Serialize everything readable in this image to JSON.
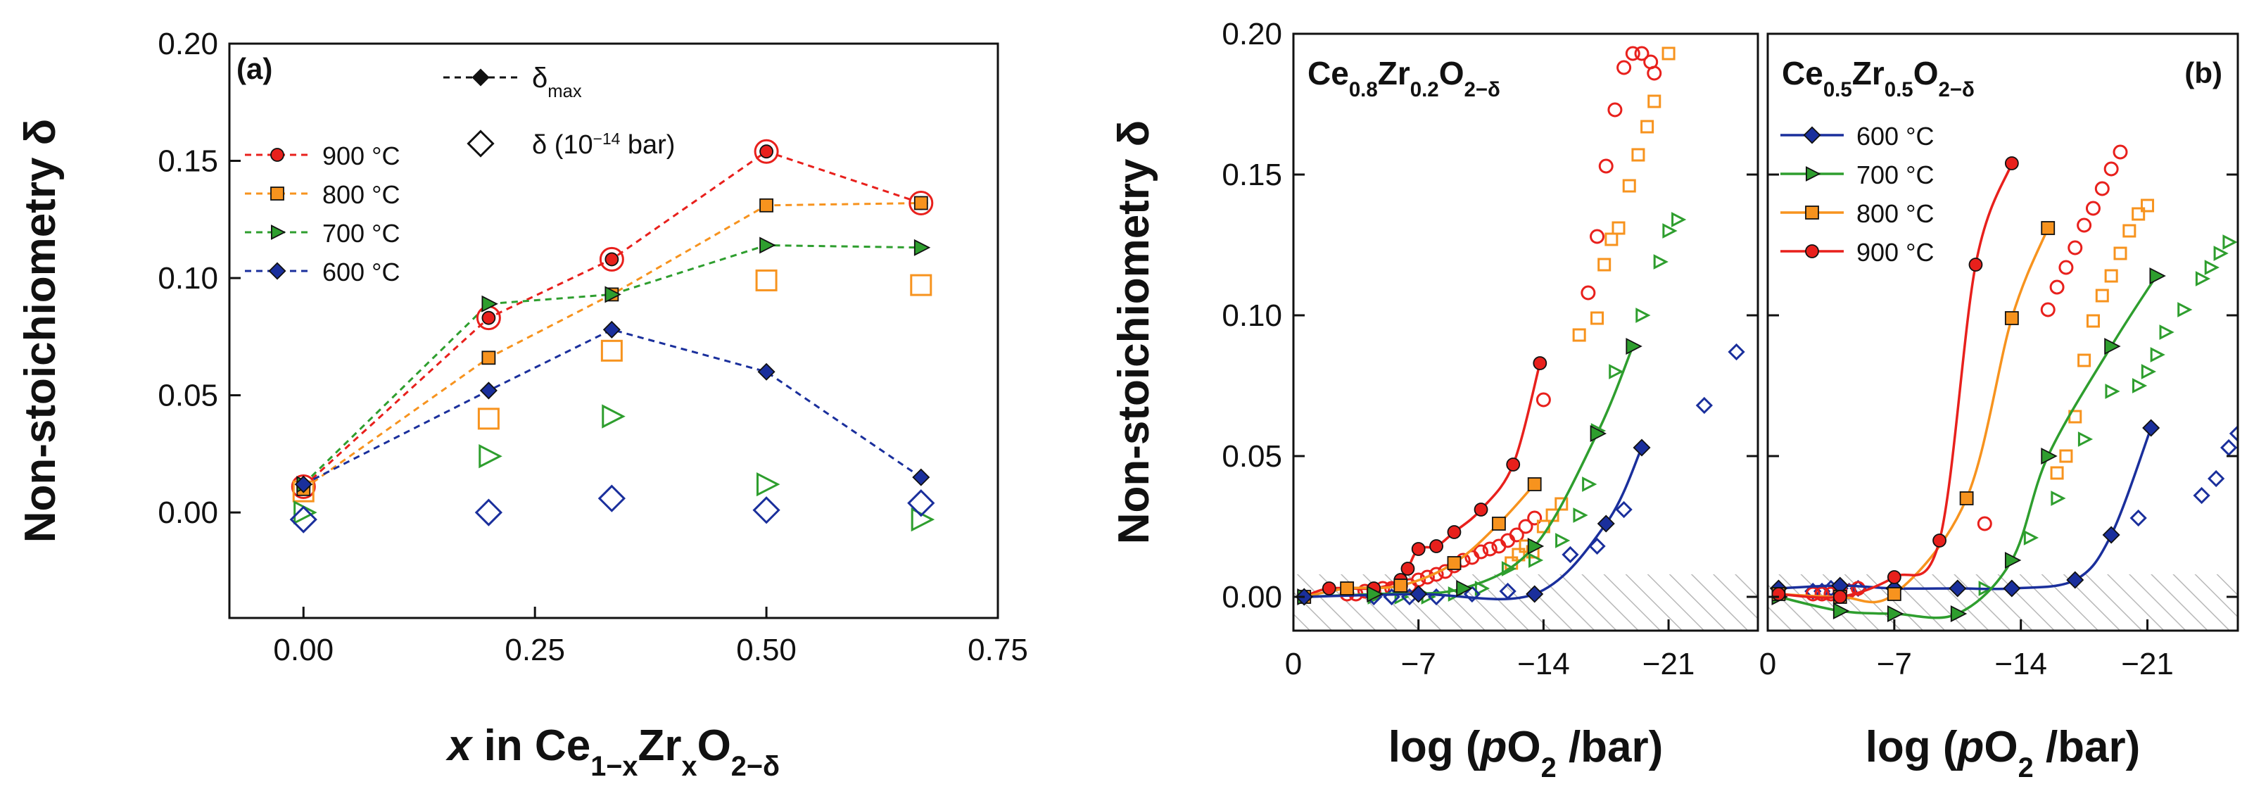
{
  "chart_data": [
    {
      "type": "line",
      "panel": "(a)",
      "xlabel": {
        "italic": "x",
        "mid": " in Ce",
        "sub1": "1−x",
        "mid2": "Zr",
        "sub2": "x",
        "mid3": "O",
        "sub3": "2−δ"
      },
      "ylabel": "Non-stoichiometry δ",
      "xlim": [
        -0.08,
        0.75
      ],
      "ylim": [
        -0.045,
        0.2
      ],
      "xticks": [
        "0.00",
        "0.25",
        "0.50",
        "0.75"
      ],
      "yticks": [
        "0.00",
        "0.05",
        "0.10",
        "0.15",
        "0.20"
      ],
      "legend_top": {
        "line_label": "δ",
        "line_sub": "max",
        "open_label": "δ (10",
        "open_sup": "−14",
        "open_end": " bar)"
      },
      "series": [
        {
          "name": "900 °C",
          "color": "#e8201c",
          "marker": "circle",
          "x": [
            0.0,
            0.2,
            0.333,
            0.5,
            0.667
          ],
          "delta_max": [
            0.011,
            0.083,
            0.108,
            0.154,
            0.132
          ],
          "delta_1e14": [
            0.011,
            0.083,
            0.108,
            0.154,
            0.132
          ]
        },
        {
          "name": "800 °C",
          "color": "#f7931e",
          "marker": "square",
          "x": [
            0.0,
            0.2,
            0.333,
            0.5,
            0.667
          ],
          "delta_max": [
            0.01,
            0.066,
            0.093,
            0.131,
            0.132
          ],
          "delta_1e14": [
            0.009,
            0.04,
            0.069,
            0.099,
            0.097
          ]
        },
        {
          "name": "700 °C",
          "color": "#2e9e2e",
          "marker": "triangle-right",
          "x": [
            0.0,
            0.2,
            0.333,
            0.5,
            0.667
          ],
          "delta_max": [
            0.012,
            0.089,
            0.093,
            0.114,
            0.113
          ],
          "delta_1e14": [
            0.0,
            0.024,
            0.041,
            0.012,
            -0.003
          ]
        },
        {
          "name": "600 °C",
          "color": "#1a2f9c",
          "marker": "diamond",
          "x": [
            0.0,
            0.2,
            0.333,
            0.5,
            0.667
          ],
          "delta_max": [
            0.012,
            0.052,
            0.078,
            0.06,
            0.015
          ],
          "delta_1e14": [
            -0.003,
            0.0,
            0.006,
            0.001,
            0.004
          ]
        }
      ]
    },
    {
      "type": "scatter",
      "panel": "(b)",
      "xlabel": {
        "pre": "log (",
        "italic": "p",
        "mid": "O",
        "sub": "2",
        "post": " /bar)"
      },
      "ylabel": "Non-stoichiometry δ",
      "xlim": [
        0,
        -26
      ],
      "ylim": [
        -0.012,
        0.2
      ],
      "xticks": [
        "0",
        "−7",
        "−14",
        "−21"
      ],
      "yticks": [
        "0.00",
        "0.05",
        "0.10",
        "0.15",
        "0.20"
      ],
      "hatched_region_delta_max": 0.008,
      "subpanels": [
        {
          "composition": {
            "base": "Ce",
            "sub1": "0.8",
            "mid": "Zr",
            "sub2": "0.2",
            "mid2": "O",
            "sub3": "2−δ"
          },
          "series": [
            {
              "name": "900 °C",
              "color": "#e8201c",
              "marker": "circle",
              "filled_logpO2": [
                -0.6,
                -2.0,
                -4.5,
                -6.0,
                -6.4,
                -7.0,
                -8.0,
                -9.0,
                -10.5,
                -12.3,
                -13.8
              ],
              "filled_delta": [
                0.0,
                0.003,
                0.003,
                0.006,
                0.01,
                0.017,
                0.018,
                0.023,
                0.031,
                0.047,
                0.083
              ],
              "open_logpO2": [
                -3.0,
                -3.5,
                -4.0,
                -4.5,
                -5.0,
                -5.5,
                -6.0,
                -6.5,
                -7.0,
                -7.5,
                -8.0,
                -8.5,
                -9.0,
                -9.5,
                -10.0,
                -10.5,
                -11.0,
                -11.5,
                -12.0,
                -12.5,
                -13.0,
                -13.5,
                -14.0,
                -16.5,
                -17.0,
                -17.5,
                -18.0,
                -18.5,
                -19.0,
                -19.5,
                -20.0,
                -20.2
              ],
              "open_delta": [
                0.001,
                0.001,
                0.002,
                0.002,
                0.003,
                0.003,
                0.004,
                0.004,
                0.006,
                0.007,
                0.008,
                0.009,
                0.011,
                0.013,
                0.014,
                0.016,
                0.017,
                0.018,
                0.02,
                0.022,
                0.025,
                0.028,
                0.07,
                0.108,
                0.128,
                0.153,
                0.173,
                0.188,
                0.193,
                0.193,
                0.19,
                0.186
              ]
            },
            {
              "name": "800 °C",
              "color": "#f7931e",
              "marker": "square",
              "filled_logpO2": [
                -0.6,
                -3.0,
                -6.0,
                -9.0,
                -11.5,
                -13.5
              ],
              "filled_delta": [
                0.0,
                0.003,
                0.004,
                0.012,
                0.026,
                0.04
              ],
              "open_logpO2": [
                -12.2,
                -12.6,
                -13.0,
                -13.4,
                -14.0,
                -14.5,
                -15.0,
                -16.0,
                -17.0,
                -17.4,
                -17.8,
                -18.2,
                -18.8,
                -19.3,
                -19.8,
                -20.2,
                -21.0
              ],
              "open_delta": [
                0.012,
                0.015,
                0.018,
                0.016,
                0.025,
                0.029,
                0.033,
                0.093,
                0.099,
                0.118,
                0.127,
                0.131,
                0.146,
                0.157,
                0.167,
                0.176,
                0.193
              ]
            },
            {
              "name": "700 °C",
              "color": "#2e9e2e",
              "marker": "triangle-right",
              "filled_logpO2": [
                -0.6,
                -4.5,
                -9.5,
                -13.5,
                -17.0,
                -19.0
              ],
              "filled_delta": [
                0.0,
                0.001,
                0.003,
                0.018,
                0.058,
                0.089
              ],
              "open_logpO2": [
                -4.5,
                -6.0,
                -7.5,
                -9.0,
                -10.5,
                -12.0,
                -13.5,
                -15.0,
                -16.0,
                -16.5,
                -17.0,
                -18.0,
                -19.5,
                -20.5,
                -21.0,
                -21.5
              ],
              "open_delta": [
                0.0,
                0.0,
                0.0,
                0.001,
                0.003,
                0.01,
                0.013,
                0.02,
                0.029,
                0.04,
                0.059,
                0.08,
                0.1,
                0.119,
                0.13,
                0.134
              ]
            },
            {
              "name": "600 °C",
              "color": "#1a2f9c",
              "marker": "diamond",
              "filled_logpO2": [
                -0.6,
                -7.0,
                -13.5,
                -17.5,
                -19.5
              ],
              "filled_delta": [
                0.0,
                0.001,
                0.001,
                0.026,
                0.053
              ],
              "open_logpO2": [
                -4.5,
                -5.5,
                -6.5,
                -8.0,
                -10.0,
                -12.0,
                -15.5,
                -17.0,
                -18.5,
                -23.0,
                -24.8
              ],
              "open_delta": [
                0.0,
                0.0,
                0.0,
                0.0,
                0.001,
                0.002,
                0.015,
                0.018,
                0.031,
                0.068,
                0.087
              ]
            }
          ]
        },
        {
          "composition": {
            "base": "Ce",
            "sub1": "0.5",
            "mid": "Zr",
            "sub2": "0.5",
            "mid2": "O",
            "sub3": "2−δ"
          },
          "series": [
            {
              "name": "600 °C",
              "color": "#1a2f9c",
              "marker": "diamond",
              "filled_logpO2": [
                -0.6,
                -4.0,
                -7.0,
                -10.5,
                -13.5,
                -17.0,
                -19.0,
                -21.2
              ],
              "filled_delta": [
                0.003,
                0.004,
                0.003,
                0.003,
                0.003,
                0.006,
                0.022,
                0.06
              ],
              "open_logpO2": [
                -2.5,
                -3.0,
                -3.5,
                -4.0,
                -4.5,
                -5.0,
                -20.5,
                -24.0,
                -24.8,
                -25.5,
                -26.0
              ],
              "open_delta": [
                0.002,
                0.002,
                0.003,
                0.003,
                0.002,
                0.003,
                0.028,
                0.036,
                0.042,
                0.053,
                0.058
              ]
            },
            {
              "name": "700 °C",
              "color": "#2e9e2e",
              "marker": "triangle-right",
              "filled_logpO2": [
                -0.6,
                -4.0,
                -7.0,
                -10.5,
                -13.5,
                -15.5,
                -19.0,
                -21.5
              ],
              "filled_delta": [
                0.0,
                -0.005,
                -0.006,
                -0.006,
                0.013,
                0.05,
                0.089,
                0.114
              ],
              "open_logpO2": [
                -12.0,
                -14.5,
                -16.0,
                -17.5,
                -19.0,
                -20.5,
                -21.0,
                -21.5,
                -22.0,
                -23.0,
                -24.0,
                -24.5,
                -25.0,
                -25.5
              ],
              "open_delta": [
                0.003,
                0.021,
                0.035,
                0.056,
                0.073,
                0.075,
                0.08,
                0.086,
                0.094,
                0.102,
                0.113,
                0.117,
                0.122,
                0.126
              ]
            },
            {
              "name": "800 °C",
              "color": "#f7931e",
              "marker": "square",
              "filled_logpO2": [
                -0.6,
                -4.0,
                -7.0,
                -11.0,
                -13.5,
                -15.5
              ],
              "filled_delta": [
                0.001,
                0.0,
                0.001,
                0.035,
                0.099,
                0.131
              ],
              "open_logpO2": [
                -16.0,
                -16.5,
                -17.0,
                -17.5,
                -18.0,
                -18.5,
                -19.0,
                -19.5,
                -20.0,
                -20.5,
                -21.0
              ],
              "open_delta": [
                0.044,
                0.05,
                0.064,
                0.084,
                0.098,
                0.107,
                0.114,
                0.122,
                0.13,
                0.136,
                0.139
              ]
            },
            {
              "name": "900 °C",
              "color": "#e8201c",
              "marker": "circle",
              "filled_logpO2": [
                -0.6,
                -4.0,
                -7.0,
                -9.5,
                -11.5,
                -13.5
              ],
              "filled_delta": [
                0.001,
                0.0,
                0.007,
                0.02,
                0.118,
                0.154
              ],
              "open_logpO2": [
                -2.5,
                -3.0,
                -3.5,
                -4.0,
                -4.5,
                -5.0,
                -12.0,
                -15.5,
                -16.0,
                -16.5,
                -17.0,
                -17.5,
                -18.0,
                -18.5,
                -19.0,
                -19.5
              ],
              "open_delta": [
                0.001,
                0.001,
                0.001,
                0.002,
                0.002,
                0.003,
                0.026,
                0.102,
                0.11,
                0.117,
                0.124,
                0.132,
                0.138,
                0.145,
                0.152,
                0.158
              ]
            }
          ]
        }
      ]
    }
  ]
}
